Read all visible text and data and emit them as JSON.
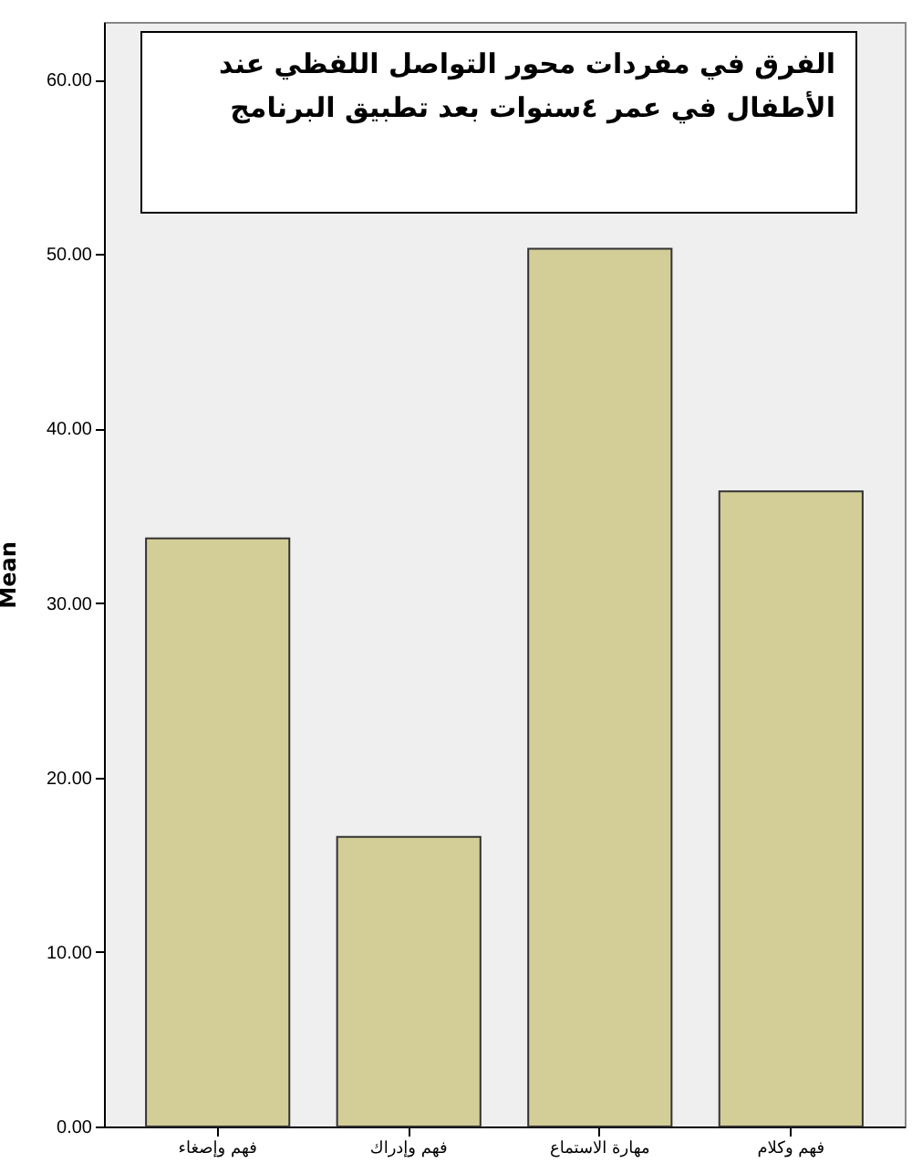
{
  "chart_data": {
    "type": "bar",
    "title": "الفرق في مفردات محور التواصل اللفظي عند الأطفال في عمر ٤سنوات بعد تطبيق البرنامج",
    "ylabel": "Mean",
    "categories": [
      "فهم وإصغاء",
      "فهم وإدراك",
      "مهارة الاستماع",
      "فهم وكلام"
    ],
    "values": [
      33.7,
      16.6,
      50.3,
      36.4
    ],
    "color": "#d3ce97",
    "ylim": [
      0,
      63.3
    ],
    "yticks": [
      {
        "value": 0,
        "label": "0.00"
      },
      {
        "value": 10,
        "label": "10.00"
      },
      {
        "value": 20,
        "label": "20.00"
      },
      {
        "value": 30,
        "label": "30.00"
      },
      {
        "value": 40,
        "label": "40.00"
      },
      {
        "value": 50,
        "label": "50.00"
      },
      {
        "value": 60,
        "label": "60.00"
      }
    ],
    "grid": false
  }
}
